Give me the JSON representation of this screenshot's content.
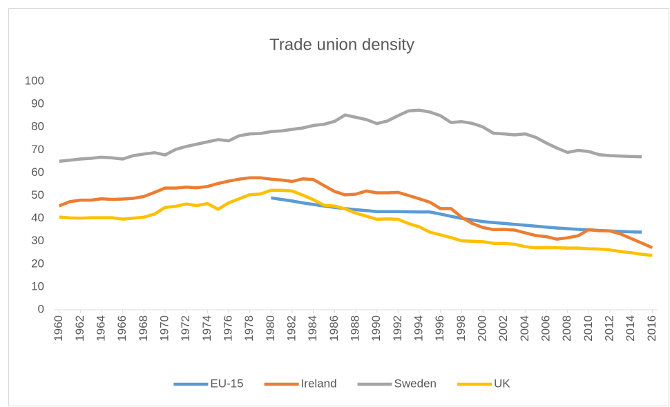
{
  "chart_data": {
    "type": "line",
    "title": "Trade union density",
    "x": [
      1960,
      1961,
      1962,
      1963,
      1964,
      1965,
      1966,
      1967,
      1968,
      1969,
      1970,
      1971,
      1972,
      1973,
      1974,
      1975,
      1976,
      1977,
      1978,
      1979,
      1980,
      1981,
      1982,
      1983,
      1984,
      1985,
      1986,
      1987,
      1988,
      1989,
      1990,
      1991,
      1992,
      1993,
      1994,
      1995,
      1996,
      1997,
      1998,
      1999,
      2000,
      2001,
      2002,
      2003,
      2004,
      2005,
      2006,
      2007,
      2008,
      2009,
      2010,
      2011,
      2012,
      2013,
      2014,
      2015,
      2016
    ],
    "series": [
      {
        "name": "EU-15",
        "color": "#5b9bd5",
        "values": [
          null,
          null,
          null,
          null,
          null,
          null,
          null,
          null,
          null,
          null,
          null,
          null,
          null,
          null,
          null,
          null,
          null,
          null,
          null,
          null,
          49,
          48.3,
          47.6,
          46.8,
          46.1,
          45.4,
          44.8,
          44.3,
          43.8,
          43.4,
          43,
          43,
          43,
          42.9,
          42.8,
          42.8,
          41.9,
          40.9,
          40,
          39.3,
          38.6,
          38.2,
          37.8,
          37.4,
          37,
          36.6,
          36.2,
          35.8,
          35.5,
          35.2,
          35,
          34.7,
          34.5,
          34.3,
          34.1,
          34,
          null
        ]
      },
      {
        "name": "Ireland",
        "color": "#ed7d31",
        "values": [
          45.5,
          47.3,
          48,
          48,
          48.6,
          48.3,
          48.5,
          48.8,
          49.6,
          51.4,
          53.3,
          53.3,
          53.7,
          53.4,
          54,
          55.3,
          56.3,
          57.2,
          57.8,
          57.8,
          57.2,
          56.8,
          56.2,
          57.3,
          57,
          54.4,
          51.8,
          50.3,
          50.6,
          52,
          51.2,
          51.2,
          51.4,
          50,
          48.6,
          47.1,
          44.3,
          44.3,
          40.5,
          37.8,
          36,
          35.1,
          35.2,
          34.9,
          33.7,
          32.5,
          32,
          30.9,
          31.5,
          32.4,
          35.1,
          34.6,
          34.5,
          33.2,
          31.2,
          29.2,
          27.2
        ]
      },
      {
        "name": "Sweden",
        "color": "#a5a5a5",
        "values": [
          65,
          65.5,
          66,
          66.3,
          66.8,
          66.5,
          66,
          67.5,
          68.2,
          68.8,
          67.8,
          70.2,
          71.5,
          72.5,
          73.5,
          74.5,
          74,
          76.2,
          77,
          77.2,
          78,
          78.3,
          79,
          79.6,
          80.7,
          81.2,
          82.5,
          85.3,
          84.3,
          83.3,
          81.5,
          82.7,
          85,
          87.1,
          87.4,
          86.6,
          85,
          82,
          82.4,
          81.6,
          80.1,
          77.3,
          77,
          76.6,
          77,
          75.5,
          73,
          70.8,
          68.9,
          69.8,
          69.3,
          67.9,
          67.5,
          67.3,
          67.1,
          67,
          null
        ]
      },
      {
        "name": "UK",
        "color": "#ffc000",
        "values": [
          40.6,
          40.2,
          40.1,
          40.3,
          40.3,
          40.3,
          39.7,
          40.1,
          40.5,
          41.9,
          44.8,
          45.3,
          46.3,
          45.6,
          46.5,
          44,
          46.8,
          48.6,
          50.4,
          50.7,
          52.3,
          52.3,
          52,
          50.2,
          48.2,
          45.8,
          45.4,
          44.2,
          42.3,
          41,
          39.6,
          39.8,
          39.6,
          37.7,
          36.3,
          34,
          32.8,
          31.6,
          30.2,
          30,
          29.8,
          29.1,
          29,
          28.7,
          27.6,
          27.1,
          27.2,
          27.2,
          27,
          27,
          26.7,
          26.6,
          26.2,
          25.5,
          25,
          24.3,
          23.8
        ]
      }
    ],
    "xlim": [
      1959.5,
      2016.5
    ],
    "xticks": [
      1960,
      1962,
      1964,
      1966,
      1968,
      1970,
      1972,
      1974,
      1976,
      1978,
      1980,
      1982,
      1984,
      1986,
      1988,
      1990,
      1992,
      1994,
      1996,
      1998,
      2000,
      2002,
      2004,
      2006,
      2008,
      2010,
      2012,
      2014,
      2016
    ],
    "ylim": [
      0,
      100
    ],
    "yticks": [
      0,
      10,
      20,
      30,
      40,
      50,
      60,
      70,
      80,
      90,
      100
    ],
    "grid": false,
    "legend": "bottom"
  }
}
